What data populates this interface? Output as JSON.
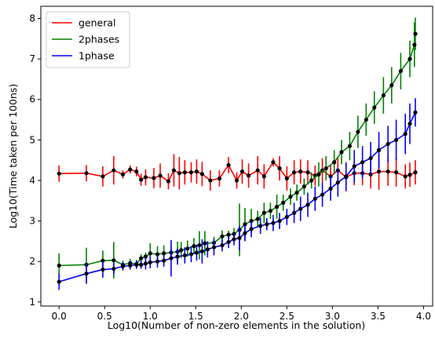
{
  "chart_data": {
    "type": "line",
    "title": "",
    "xlabel": "Log10(Number of non-zero elements in the solution)",
    "ylabel": "Log10(Time taken per 100ns)",
    "xlim": [
      -0.2,
      4.1
    ],
    "ylim": [
      0.9,
      8.3
    ],
    "xticks": [
      0.0,
      0.5,
      1.0,
      1.5,
      2.0,
      2.5,
      3.0,
      3.5,
      4.0
    ],
    "xtick_labels": [
      "0.0",
      "0.5",
      "1.0",
      "1.5",
      "2.0",
      "2.5",
      "3.0",
      "3.5",
      "4.0"
    ],
    "yticks": [
      1,
      2,
      3,
      4,
      5,
      6,
      7,
      8
    ],
    "ytick_labels": [
      "1",
      "2",
      "3",
      "4",
      "5",
      "6",
      "7",
      "8"
    ],
    "grid": false,
    "legend_position": "top-left",
    "marker_color": "#000000",
    "x": [
      0.0,
      0.3,
      0.48,
      0.6,
      0.7,
      0.78,
      0.85,
      0.9,
      0.95,
      1.0,
      1.04,
      1.08,
      1.11,
      1.15,
      1.18,
      1.2,
      1.23,
      1.26,
      1.3,
      1.32,
      1.34,
      1.38,
      1.41,
      1.45,
      1.48,
      1.51,
      1.54,
      1.57,
      1.6,
      1.63,
      1.66,
      1.7,
      1.73,
      1.76,
      1.79,
      1.83,
      1.86,
      1.89,
      1.92,
      1.95,
      1.98,
      2.01,
      2.04,
      2.08,
      2.11,
      2.14,
      2.18,
      2.21,
      2.25,
      2.28,
      2.32,
      2.35,
      2.39,
      2.42,
      2.46,
      2.5,
      2.54,
      2.58,
      2.61,
      2.65,
      2.69,
      2.73,
      2.77,
      2.81,
      2.85,
      2.89,
      2.93,
      2.98,
      3.02,
      3.06,
      3.1,
      3.15,
      3.19,
      3.24,
      3.28,
      3.33,
      3.37,
      3.42,
      3.46,
      3.51,
      3.56,
      3.61,
      3.65,
      3.7,
      3.75,
      3.8,
      3.85,
      3.9,
      3.91
    ],
    "series": [
      {
        "name": "general",
        "color": "#ff0000",
        "points": [
          [
            0.0,
            4.17,
            0.2
          ],
          [
            0.3,
            4.18,
            0.2
          ],
          [
            0.48,
            4.1,
            0.25
          ],
          [
            0.6,
            4.25,
            0.35
          ],
          [
            0.7,
            4.15,
            0.1
          ],
          [
            0.78,
            4.27,
            0.1
          ],
          [
            0.85,
            4.22,
            0.12
          ],
          [
            0.9,
            4.02,
            0.15
          ],
          [
            0.95,
            4.08,
            0.2
          ],
          [
            1.04,
            4.06,
            0.25
          ],
          [
            1.11,
            4.12,
            0.3
          ],
          [
            1.2,
            3.98,
            0.2
          ],
          [
            1.26,
            4.25,
            0.4
          ],
          [
            1.32,
            4.18,
            0.4
          ],
          [
            1.38,
            4.2,
            0.3
          ],
          [
            1.45,
            4.2,
            0.25
          ],
          [
            1.51,
            4.22,
            0.3
          ],
          [
            1.57,
            4.16,
            0.3
          ],
          [
            1.66,
            4.0,
            0.25
          ],
          [
            1.76,
            4.05,
            0.2
          ],
          [
            1.86,
            4.38,
            0.2
          ],
          [
            1.95,
            4.0,
            0.2
          ],
          [
            2.01,
            4.22,
            0.3
          ],
          [
            2.08,
            4.12,
            0.3
          ],
          [
            2.18,
            4.25,
            0.35
          ],
          [
            2.25,
            4.1,
            0.3
          ],
          [
            2.35,
            4.45,
            0.1
          ],
          [
            2.42,
            4.3,
            0.3
          ],
          [
            2.5,
            4.05,
            0.3
          ],
          [
            2.58,
            4.2,
            0.3
          ],
          [
            2.65,
            4.22,
            0.3
          ],
          [
            2.73,
            4.2,
            0.3
          ],
          [
            2.81,
            4.12,
            0.25
          ],
          [
            2.89,
            4.25,
            0.3
          ],
          [
            2.98,
            4.1,
            0.3
          ],
          [
            3.06,
            4.25,
            0.3
          ],
          [
            3.15,
            4.08,
            0.35
          ],
          [
            3.24,
            4.18,
            0.3
          ],
          [
            3.33,
            4.18,
            0.3
          ],
          [
            3.42,
            4.15,
            0.35
          ],
          [
            3.51,
            4.22,
            0.45
          ],
          [
            3.61,
            4.22,
            0.35
          ],
          [
            3.7,
            4.2,
            0.35
          ],
          [
            3.8,
            4.1,
            0.3
          ],
          [
            3.85,
            4.14,
            0.3
          ],
          [
            3.91,
            4.2,
            0.3
          ]
        ]
      },
      {
        "name": "2phases",
        "color": "#008000",
        "points": [
          [
            0.0,
            1.9,
            0.3
          ],
          [
            0.3,
            1.92,
            0.42
          ],
          [
            0.48,
            2.02,
            0.25
          ],
          [
            0.6,
            2.03,
            0.45
          ],
          [
            0.7,
            1.92,
            0.1
          ],
          [
            0.78,
            1.96,
            0.1
          ],
          [
            0.85,
            1.94,
            0.1
          ],
          [
            0.9,
            2.08,
            0.1
          ],
          [
            0.95,
            2.12,
            0.1
          ],
          [
            1.0,
            2.2,
            0.25
          ],
          [
            1.08,
            2.18,
            0.2
          ],
          [
            1.15,
            2.2,
            0.2
          ],
          [
            1.23,
            2.22,
            0.15
          ],
          [
            1.3,
            2.24,
            0.25
          ],
          [
            1.34,
            2.28,
            0.2
          ],
          [
            1.41,
            2.32,
            0.2
          ],
          [
            1.48,
            2.38,
            0.2
          ],
          [
            1.54,
            2.4,
            0.35
          ],
          [
            1.6,
            2.45,
            0.3
          ],
          [
            1.7,
            2.46,
            0.15
          ],
          [
            1.79,
            2.62,
            0.15
          ],
          [
            1.86,
            2.66,
            0.1
          ],
          [
            1.92,
            2.68,
            0.15
          ],
          [
            1.98,
            2.78,
            0.65
          ],
          [
            2.04,
            2.92,
            0.4
          ],
          [
            2.11,
            3.0,
            0.3
          ],
          [
            2.18,
            3.05,
            0.2
          ],
          [
            2.25,
            3.2,
            0.25
          ],
          [
            2.32,
            3.25,
            0.2
          ],
          [
            2.39,
            3.35,
            0.3
          ],
          [
            2.46,
            3.45,
            0.2
          ],
          [
            2.54,
            3.6,
            0.2
          ],
          [
            2.61,
            3.7,
            0.2
          ],
          [
            2.69,
            3.85,
            0.2
          ],
          [
            2.77,
            4.0,
            0.2
          ],
          [
            2.85,
            4.15,
            0.3
          ],
          [
            2.93,
            4.3,
            0.3
          ],
          [
            3.02,
            4.45,
            0.3
          ],
          [
            3.1,
            4.7,
            0.3
          ],
          [
            3.19,
            4.85,
            0.35
          ],
          [
            3.28,
            5.2,
            0.4
          ],
          [
            3.37,
            5.5,
            0.4
          ],
          [
            3.46,
            5.8,
            0.4
          ],
          [
            3.56,
            6.1,
            0.45
          ],
          [
            3.65,
            6.35,
            0.45
          ],
          [
            3.75,
            6.7,
            0.45
          ],
          [
            3.85,
            7.0,
            0.45
          ],
          [
            3.9,
            7.35,
            0.55
          ],
          [
            3.91,
            7.62,
            0.4
          ]
        ]
      },
      {
        "name": "1phase",
        "color": "#0000ff",
        "points": [
          [
            0.0,
            1.5,
            0.2
          ],
          [
            0.3,
            1.7,
            0.25
          ],
          [
            0.48,
            1.8,
            0.2
          ],
          [
            0.6,
            1.82,
            0.15
          ],
          [
            0.7,
            1.88,
            0.1
          ],
          [
            0.78,
            1.9,
            0.1
          ],
          [
            0.85,
            1.92,
            0.1
          ],
          [
            0.9,
            1.92,
            0.1
          ],
          [
            0.95,
            1.95,
            0.15
          ],
          [
            1.0,
            1.98,
            0.15
          ],
          [
            1.08,
            2.0,
            0.15
          ],
          [
            1.15,
            2.02,
            0.15
          ],
          [
            1.23,
            2.08,
            0.45
          ],
          [
            1.3,
            2.12,
            0.2
          ],
          [
            1.38,
            2.15,
            0.2
          ],
          [
            1.45,
            2.18,
            0.2
          ],
          [
            1.51,
            2.22,
            0.2
          ],
          [
            1.57,
            2.25,
            0.3
          ],
          [
            1.63,
            2.3,
            0.2
          ],
          [
            1.7,
            2.35,
            0.2
          ],
          [
            1.79,
            2.4,
            0.15
          ],
          [
            1.86,
            2.48,
            0.15
          ],
          [
            1.92,
            2.55,
            0.15
          ],
          [
            1.98,
            2.58,
            0.3
          ],
          [
            2.04,
            2.7,
            0.2
          ],
          [
            2.11,
            2.8,
            0.2
          ],
          [
            2.21,
            2.88,
            0.2
          ],
          [
            2.28,
            2.92,
            0.15
          ],
          [
            2.35,
            2.95,
            0.2
          ],
          [
            2.42,
            3.0,
            0.2
          ],
          [
            2.5,
            3.1,
            0.2
          ],
          [
            2.58,
            3.2,
            0.25
          ],
          [
            2.65,
            3.3,
            0.3
          ],
          [
            2.73,
            3.4,
            0.3
          ],
          [
            2.81,
            3.55,
            0.3
          ],
          [
            2.89,
            3.65,
            0.3
          ],
          [
            2.98,
            3.8,
            0.3
          ],
          [
            3.06,
            3.95,
            0.35
          ],
          [
            3.15,
            4.1,
            0.35
          ],
          [
            3.24,
            4.35,
            0.4
          ],
          [
            3.33,
            4.45,
            0.4
          ],
          [
            3.42,
            4.55,
            0.4
          ],
          [
            3.51,
            4.75,
            0.45
          ],
          [
            3.61,
            4.9,
            0.45
          ],
          [
            3.7,
            5.0,
            0.5
          ],
          [
            3.8,
            5.15,
            0.5
          ],
          [
            3.85,
            5.4,
            0.5
          ],
          [
            3.91,
            5.68,
            0.35
          ]
        ]
      }
    ]
  }
}
